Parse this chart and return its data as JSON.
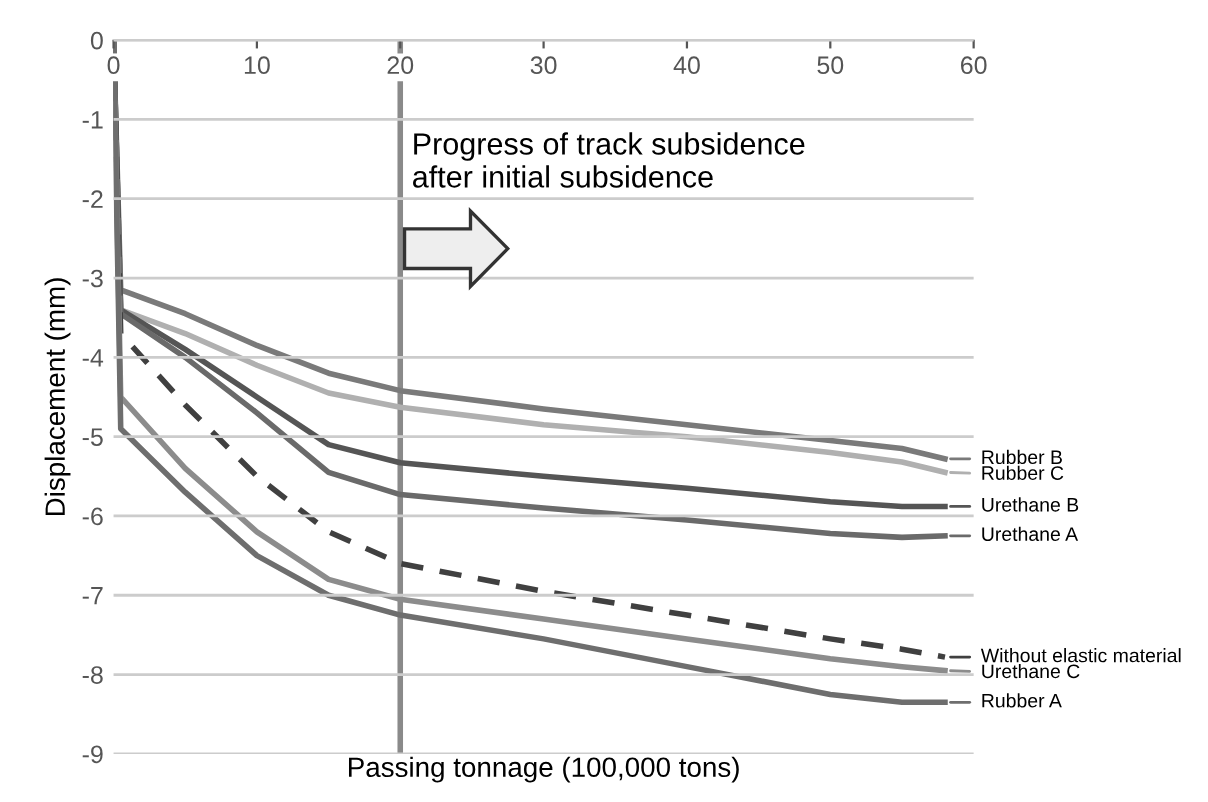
{
  "chart_data": {
    "type": "line",
    "xlabel": "Passing tonnage (100,000 tons)",
    "ylabel": "Displacement (mm)",
    "x": [
      0,
      0.5,
      5,
      10,
      15,
      20,
      30,
      40,
      50,
      55,
      58
    ],
    "series": [
      {
        "name": "Rubber B",
        "color": "#7a7a7a",
        "values": [
          0,
          -3.15,
          -3.45,
          -3.85,
          -4.2,
          -4.42,
          -4.65,
          -4.85,
          -5.05,
          -5.15,
          -5.28
        ]
      },
      {
        "name": "Rubber C",
        "color": "#b0b0b0",
        "values": [
          0,
          -3.4,
          -3.7,
          -4.1,
          -4.45,
          -4.63,
          -4.85,
          -5.0,
          -5.2,
          -5.32,
          -5.45
        ]
      },
      {
        "name": "Urethane B",
        "color": "#555555",
        "values": [
          0,
          -3.4,
          -3.9,
          -4.5,
          -5.1,
          -5.33,
          -5.5,
          -5.65,
          -5.82,
          -5.88,
          -5.88
        ]
      },
      {
        "name": "Urethane A",
        "color": "#6a6a6a",
        "values": [
          0,
          -3.45,
          -4.0,
          -4.7,
          -5.45,
          -5.73,
          -5.9,
          -6.05,
          -6.22,
          -6.27,
          -6.25
        ]
      },
      {
        "name": "Without elastic material",
        "color": "#404040",
        "line_style": "dashed",
        "values": [
          0,
          -3.7,
          -4.6,
          -5.5,
          -6.2,
          -6.6,
          -6.95,
          -7.25,
          -7.55,
          -7.68,
          -7.78
        ]
      },
      {
        "name": "Urethane C",
        "color": "#8c8c8c",
        "values": [
          0,
          -4.5,
          -5.4,
          -6.2,
          -6.8,
          -7.05,
          -7.3,
          -7.55,
          -7.8,
          -7.9,
          -7.95
        ]
      },
      {
        "name": "Rubber A",
        "color": "#6e6e6e",
        "values": [
          0,
          -4.9,
          -5.7,
          -6.5,
          -7.0,
          -7.25,
          -7.55,
          -7.9,
          -8.25,
          -8.35,
          -8.35
        ]
      }
    ],
    "xlim": [
      0,
      60
    ],
    "xticks": [
      0,
      10,
      20,
      30,
      40,
      50,
      60
    ],
    "ylim": [
      -9,
      0
    ],
    "yticks": [
      0,
      -1,
      -2,
      -3,
      -4,
      -5,
      -6,
      -7,
      -8,
      -9
    ],
    "grid": "y",
    "legend": "right",
    "marker": "none",
    "line_style": "solid",
    "ref_lines": [
      {
        "axis": "x",
        "value": 20,
        "label": null,
        "color": "#8a8a8a"
      }
    ],
    "annotations": [
      "Progress of track subsidence\nafter initial subsidence"
    ]
  }
}
